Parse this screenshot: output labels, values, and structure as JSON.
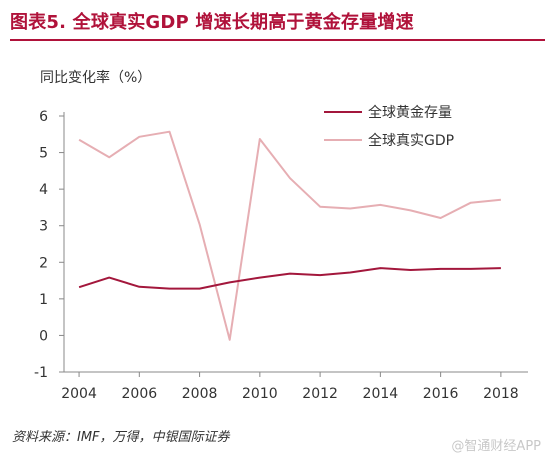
{
  "title": "图表5. 全球真实GDP 增速长期高于黄金存量增速",
  "source": "资料来源：IMF，万得，中银国际证券",
  "watermark": "@智通财经APP",
  "colors": {
    "accent": "#b0123a",
    "gold_stock_series": "#a3173c",
    "gdp_series": "#e6aeb3"
  },
  "chart_data": {
    "type": "line",
    "ylabel": "同比变化率（%）",
    "xlabel": "",
    "ylim": [
      -1,
      6
    ],
    "xlim": [
      2003.5,
      2018.9
    ],
    "y_ticks": [
      -1,
      0,
      1,
      2,
      3,
      4,
      5,
      6
    ],
    "x_ticks": [
      2004,
      2006,
      2008,
      2010,
      2012,
      2014,
      2016,
      2018
    ],
    "grid": false,
    "legend_position": "top-right",
    "series": [
      {
        "name": "全球黄金存量",
        "color": "#a3173c",
        "x": [
          2004,
          2005,
          2006,
          2007,
          2008,
          2009,
          2010,
          2011,
          2012,
          2013,
          2014,
          2015,
          2016,
          2017,
          2018
        ],
        "values": [
          1.32,
          1.58,
          1.33,
          1.28,
          1.28,
          1.45,
          1.58,
          1.69,
          1.65,
          1.72,
          1.84,
          1.79,
          1.82,
          1.82,
          1.84
        ]
      },
      {
        "name": "全球真实GDP",
        "color": "#e6aeb3",
        "x": [
          2004,
          2005,
          2006,
          2007,
          2008,
          2009,
          2010,
          2011,
          2012,
          2013,
          2014,
          2015,
          2016,
          2017,
          2018
        ],
        "values": [
          5.35,
          4.87,
          5.43,
          5.57,
          3.04,
          -0.12,
          5.37,
          4.3,
          3.52,
          3.47,
          3.57,
          3.42,
          3.21,
          3.63,
          3.71
        ]
      }
    ]
  }
}
